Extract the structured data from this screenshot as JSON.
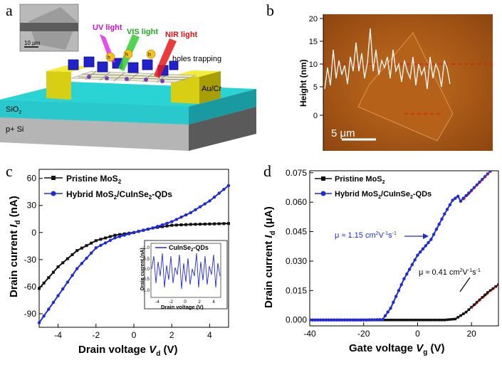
{
  "panels": {
    "a": {
      "letter": "a",
      "scale_bar": "10 μm",
      "uv": "UV light",
      "vis": "VIS light",
      "nir": "NIR light",
      "hole": "h",
      "hole_sup": "+",
      "holes_trapping": "holes trapping",
      "electrode": "Au/Cr",
      "oxide": "SiO",
      "oxide_sub": "2",
      "substrate": "p+ Si"
    },
    "b": {
      "letter": "b",
      "ylabel": "Height (nm)",
      "yticks": [
        "20",
        "15",
        "10",
        "5",
        "0"
      ],
      "scale_bar": "5 μm"
    },
    "c": {
      "letter": "c",
      "legend1": "Pristine MoS",
      "legend1_sub": "2",
      "legend2a": "Hybrid MoS",
      "legend2_sub1": "2",
      "legend2b": "/CuInSe",
      "legend2_sub2": "2",
      "legend2c": "-QDs",
      "ylabel_main": "Drain current ",
      "ylabel_var": "I",
      "ylabel_sub": "d",
      "ylabel_unit": " (nA)",
      "xlabel_main": "Drain voltage ",
      "xlabel_var": "V",
      "xlabel_sub": "d",
      "xlabel_unit": " (V)",
      "yticks": [
        "60",
        "30",
        "0",
        "-30",
        "-60",
        "-90"
      ],
      "xticks": [
        "-4",
        "-2",
        "0",
        "2",
        "4"
      ],
      "inset": {
        "legend": "CuInSe",
        "legend_sub": "2",
        "legend_tail": "-QDs",
        "ylabel": "Drain current (nA)",
        "xlabel": "Drain voltage (V)",
        "yticks": [
          "1.0",
          "0.5",
          "0.0",
          "-0.5",
          "-1.0"
        ],
        "xticks": [
          "-4",
          "-2",
          "0",
          "2",
          "4"
        ]
      }
    },
    "d": {
      "letter": "d",
      "legend1": "Pristine MoS",
      "legend1_sub": "2",
      "legend2a": "Hybrid MoS",
      "legend2_sub1": "2",
      "legend2b": "/CuInSe",
      "legend2_sub2": "2",
      "legend2c": "-QDs",
      "ylabel_main": "Drain current ",
      "ylabel_var": "I",
      "ylabel_sub": "d",
      "ylabel_unit": " (μA)",
      "xlabel_main": "Gate voltage ",
      "xlabel_var": "V",
      "xlabel_sub": "g",
      "xlabel_unit": " (V)",
      "yticks": [
        "0.075",
        "0.060",
        "0.045",
        "0.030",
        "0.015",
        "0.000"
      ],
      "xticks": [
        "-40",
        "-20",
        "0",
        "20"
      ],
      "mobility_hybrid": "μ ≈ 1.15 cm",
      "mobility_pristine": "μ ≈ 0.41 cm",
      "mob_sup1": "2",
      "mob_mid": "V",
      "mob_sup2": "-1",
      "mob_s": "s",
      "mob_sup3": "-1"
    }
  },
  "chart_data": [
    {
      "type": "line",
      "panel": "c",
      "xlabel": "Drain voltage V_d (V)",
      "ylabel": "Drain current I_d (nA)",
      "xlim": [
        -5,
        5
      ],
      "ylim": [
        -105,
        70
      ],
      "series": [
        {
          "name": "Pristine MoS2",
          "color": "#111111",
          "x": [
            -5,
            -4,
            -3,
            -2,
            -1,
            0,
            1,
            2,
            3,
            4,
            5
          ],
          "y": [
            -62,
            -38,
            -20,
            -9,
            -3,
            0,
            5,
            8,
            9,
            9.5,
            10
          ]
        },
        {
          "name": "Hybrid MoS2/CuInSe2-QDs",
          "color": "#1f2ad6",
          "x": [
            -5,
            -4,
            -3,
            -2,
            -1,
            0,
            1,
            2,
            3,
            4,
            5
          ],
          "y": [
            -100,
            -70,
            -40,
            -17,
            -6,
            0,
            5,
            12,
            22,
            35,
            52
          ]
        }
      ],
      "inset": {
        "type": "line",
        "series": [
          {
            "name": "CuInSe2-QDs",
            "color": "#1f2ad6"
          }
        ],
        "xlim": [
          -5,
          5
        ],
        "ylim": [
          -1.0,
          1.0
        ]
      }
    },
    {
      "type": "line",
      "panel": "d",
      "xlabel": "Gate voltage V_g (V)",
      "ylabel": "Drain current I_d (μA)",
      "xlim": [
        -40,
        30
      ],
      "ylim": [
        -0.003,
        0.076
      ],
      "series": [
        {
          "name": "Pristine MoS2",
          "color": "#111111",
          "x": [
            -40,
            -30,
            -20,
            -10,
            0,
            10,
            14,
            18,
            22,
            26,
            30
          ],
          "y": [
            0,
            0,
            0,
            0,
            0,
            0,
            0.0005,
            0.004,
            0.009,
            0.014,
            0.018
          ]
        },
        {
          "name": "Hybrid MoS2/CuInSe2-QDs",
          "color": "#1f2ad6",
          "x": [
            -40,
            -20,
            -13,
            -10,
            -5,
            0,
            5,
            10,
            13,
            15,
            16,
            17,
            20,
            25,
            30
          ],
          "y": [
            0,
            0,
            0.0002,
            0.006,
            0.021,
            0.033,
            0.041,
            0.054,
            0.061,
            0.063,
            0.0605,
            0.062,
            0.066,
            0.073,
            0.08
          ]
        }
      ],
      "annotations": [
        "μ ≈ 1.15 cm2V-1s-1",
        "μ ≈ 0.41 cm2V-1s-1"
      ]
    }
  ]
}
